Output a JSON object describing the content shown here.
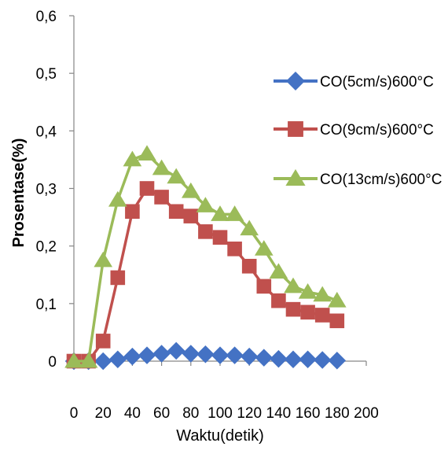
{
  "chart_data": {
    "type": "line",
    "xlabel": "Waktu(detik)",
    "ylabel": "Prosentase(%)",
    "xlim": [
      0,
      200
    ],
    "ylim": [
      0,
      0.6
    ],
    "x_ticks": [
      0,
      20,
      40,
      60,
      80,
      100,
      120,
      140,
      160,
      180,
      200
    ],
    "x_tick_labels": [
      "0",
      "20",
      "40",
      "60",
      "80",
      "100",
      "120",
      "140",
      "160",
      "180",
      "200"
    ],
    "y_ticks": [
      0,
      0.1,
      0.2,
      0.3,
      0.4,
      0.5,
      0.6
    ],
    "y_tick_labels": [
      "0",
      "0,1",
      "0,2",
      "0,3",
      "0,4",
      "0,5",
      "0,6"
    ],
    "grid": false,
    "legend_position": "right",
    "x": [
      0,
      10,
      20,
      30,
      40,
      50,
      60,
      70,
      80,
      90,
      100,
      110,
      120,
      130,
      140,
      150,
      160,
      170,
      180
    ],
    "series": [
      {
        "name": "CO(5cm/s)600°C",
        "color": "#4472c4",
        "marker": "diamond",
        "values": [
          0,
          0,
          0,
          0.003,
          0.008,
          0.01,
          0.013,
          0.018,
          0.013,
          0.012,
          0.01,
          0.01,
          0.008,
          0.006,
          0.004,
          0.003,
          0.003,
          0.002,
          0.001
        ]
      },
      {
        "name": "CO(9cm/s)600°C",
        "color": "#c0504d",
        "marker": "square",
        "values": [
          0,
          0,
          0.035,
          0.145,
          0.26,
          0.3,
          0.285,
          0.26,
          0.252,
          0.225,
          0.215,
          0.195,
          0.165,
          0.13,
          0.105,
          0.09,
          0.085,
          0.08,
          0.07
        ]
      },
      {
        "name": "CO(13cm/s)600°C",
        "color": "#9bbb59",
        "marker": "triangle",
        "values": [
          0,
          0,
          0.175,
          0.28,
          0.35,
          0.36,
          0.335,
          0.32,
          0.295,
          0.27,
          0.255,
          0.255,
          0.23,
          0.195,
          0.155,
          0.13,
          0.12,
          0.115,
          0.105
        ]
      }
    ]
  }
}
